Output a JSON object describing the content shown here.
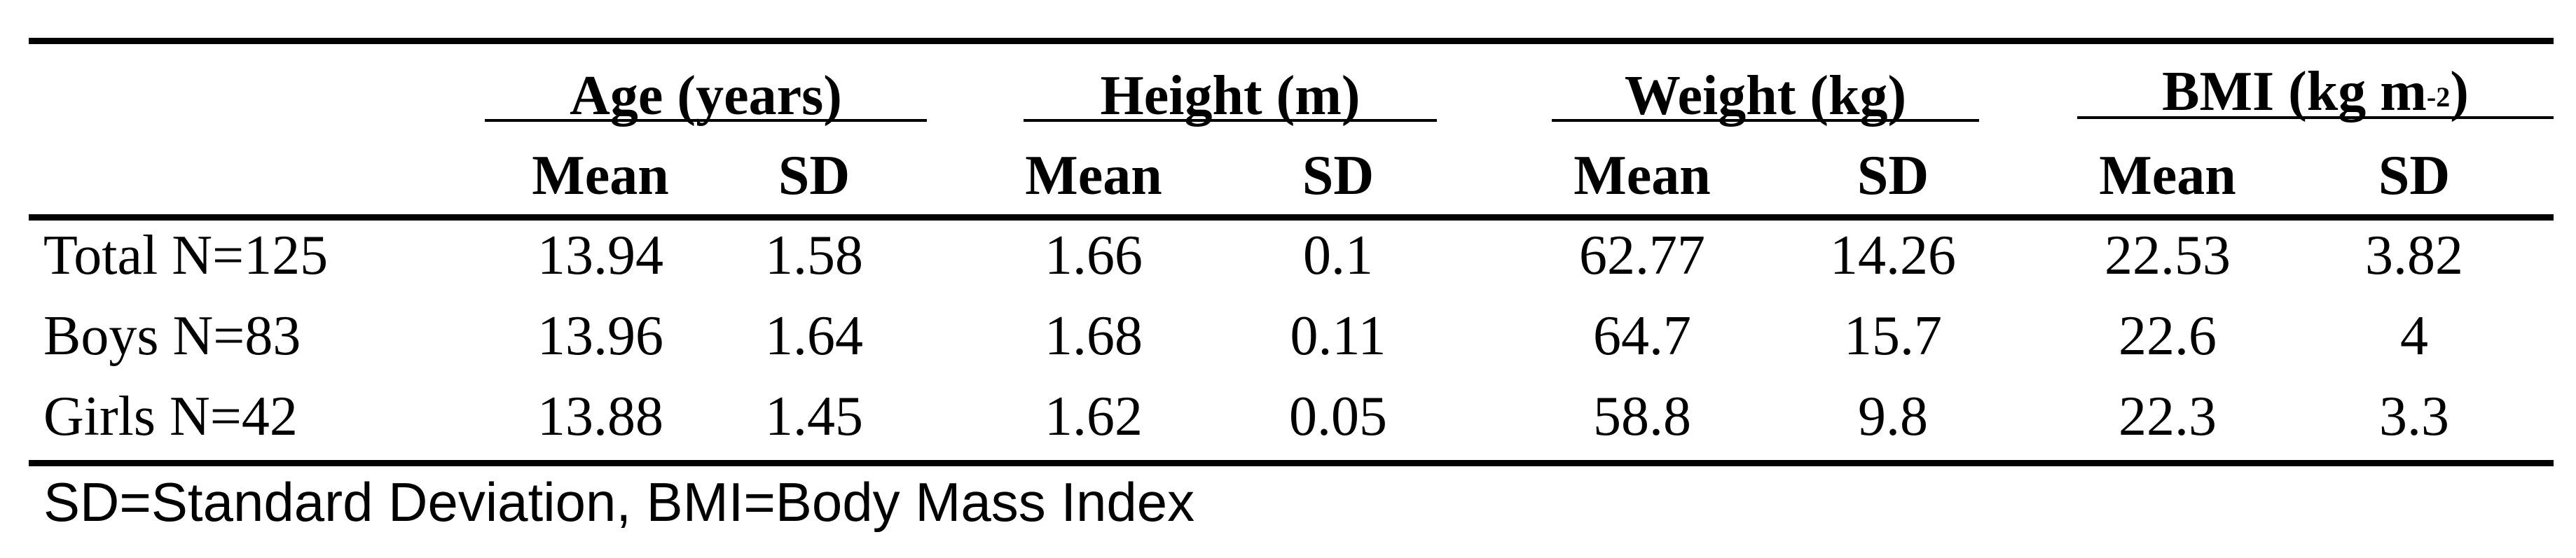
{
  "table": {
    "groups": [
      {
        "label": "Age (years)"
      },
      {
        "label": "Height (m)"
      },
      {
        "label": "Weight (kg)"
      },
      {
        "label": "BMI (kg m",
        "superscript": "-2",
        "suffix": ")"
      }
    ],
    "subheaders": [
      "Mean",
      "SD",
      "Mean",
      "SD",
      "Mean",
      "SD",
      "Mean",
      "SD"
    ],
    "rows": [
      {
        "label": "Total N=125",
        "values": [
          "13.94",
          "1.58",
          "1.66",
          "0.1",
          "62.77",
          "14.26",
          "22.53",
          "3.82"
        ]
      },
      {
        "label": "Boys N=83",
        "values": [
          "13.96",
          "1.64",
          "1.68",
          "0.11",
          "64.7",
          "15.7",
          "22.6",
          "4"
        ]
      },
      {
        "label": "Girls N=42",
        "values": [
          "13.88",
          "1.45",
          "1.62",
          "0.05",
          "58.8",
          "9.8",
          "22.3",
          "3.3"
        ]
      }
    ],
    "footnote": "SD=Standard Deviation, BMI=Body Mass Index"
  }
}
